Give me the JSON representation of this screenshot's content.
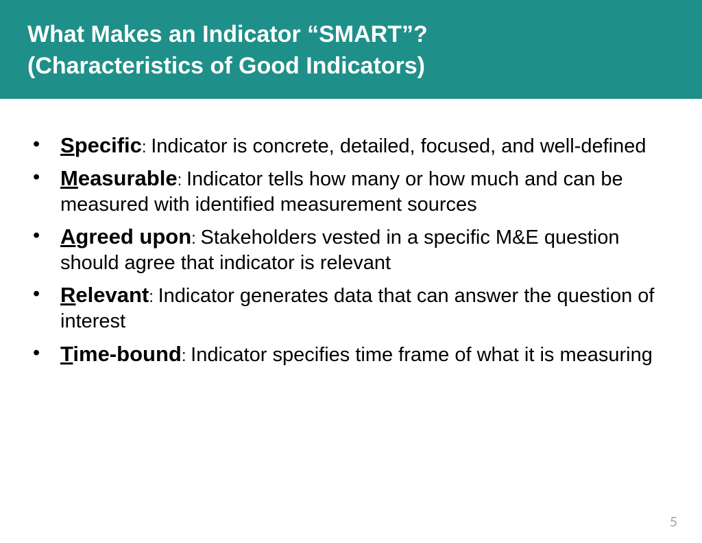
{
  "header": {
    "title_line1": "What Makes an Indicator “SMART”?",
    "title_line2": "(Characteristics of Good Indicators)"
  },
  "colors": {
    "header_bg": "#1f8f89",
    "header_text": "#ffffff",
    "body_text": "#000000",
    "page_num": "#a6a6a6",
    "background": "#ffffff"
  },
  "bullets": [
    {
      "letter": "S",
      "rest": "pecific",
      "desc": "Indicator is concrete, detailed, focused, and well-defined"
    },
    {
      "letter": "M",
      "rest": "easurable",
      "desc": "Indicator tells how many or how much and can be measured with identified measurement sources"
    },
    {
      "letter": "A",
      "rest": "greed upon",
      "desc": "Stakeholders vested in a specific M&E question should agree that indicator is relevant"
    },
    {
      "letter": "R",
      "rest": "elevant",
      "desc": "Indicator generates data that can answer the question of interest"
    },
    {
      "letter": "T",
      "rest": "ime-bound",
      "desc": "Indicator specifies time frame of what it is measuring"
    }
  ],
  "page_number": "5"
}
